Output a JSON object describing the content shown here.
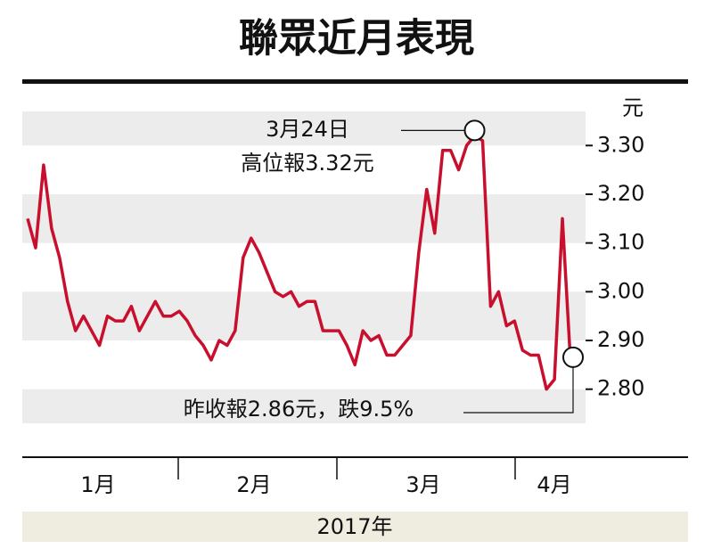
{
  "chart_data": {
    "type": "line",
    "title": "聯眾近月表現",
    "y_unit": "元",
    "year_label": "2017年",
    "months": [
      "1月",
      "2月",
      "3月",
      "4月"
    ],
    "annotations": [
      "3月24日",
      "高位報3.32元",
      "昨收報2.86元，跌9.5%"
    ],
    "color": "#c8102e",
    "values": [
      3.15,
      3.09,
      3.26,
      3.13,
      3.07,
      2.98,
      2.92,
      2.95,
      2.92,
      2.89,
      2.95,
      2.94,
      2.94,
      2.97,
      2.92,
      2.95,
      2.98,
      2.95,
      2.95,
      2.96,
      2.94,
      2.91,
      2.89,
      2.86,
      2.9,
      2.89,
      2.92,
      3.07,
      3.11,
      3.08,
      3.04,
      3.0,
      2.99,
      3.0,
      2.97,
      2.98,
      2.98,
      2.92,
      2.92,
      2.92,
      2.89,
      2.85,
      2.92,
      2.9,
      2.91,
      2.87,
      2.87,
      2.89,
      2.91,
      3.08,
      3.21,
      3.12,
      3.29,
      3.29,
      3.25,
      3.3,
      3.32,
      3.31,
      2.97,
      3.0,
      2.93,
      2.94,
      2.88,
      2.87,
      2.87,
      2.8,
      2.82,
      3.15,
      2.86
    ],
    "ylim": [
      2.73,
      3.37
    ],
    "yticks": [
      {
        "value": 3.3,
        "label": "3.30"
      },
      {
        "value": 3.2,
        "label": "3.20"
      },
      {
        "value": 3.1,
        "label": "3.10"
      },
      {
        "value": 3.0,
        "label": "3.00"
      },
      {
        "value": 2.9,
        "label": "2.90"
      },
      {
        "value": 2.8,
        "label": "2.80"
      }
    ]
  }
}
